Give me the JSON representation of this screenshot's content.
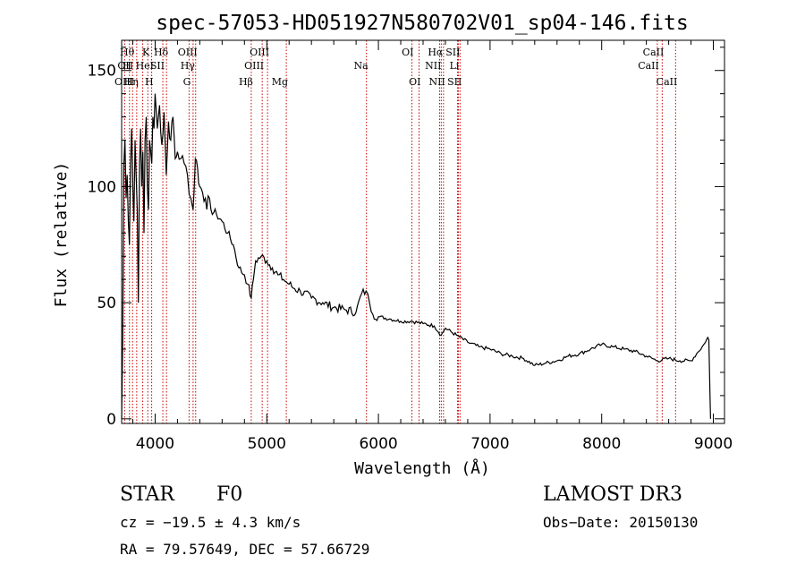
{
  "chart_data": {
    "type": "line",
    "title": "spec-57053-HD051927N580702V01_sp04-146.fits",
    "xlabel": "Wavelength (Å)",
    "ylabel": "Flux (relative)",
    "xlim": [
      3700,
      9100
    ],
    "ylim": [
      -2,
      163
    ],
    "xticks": [
      4000,
      5000,
      6000,
      7000,
      8000,
      9000
    ],
    "yticks": [
      0,
      50,
      100,
      150
    ],
    "grid": false,
    "series": [
      {
        "name": "flux",
        "x": [
          3700,
          3710,
          3720,
          3730,
          3740,
          3750,
          3760,
          3770,
          3780,
          3790,
          3800,
          3810,
          3820,
          3830,
          3840,
          3850,
          3860,
          3870,
          3880,
          3890,
          3900,
          3910,
          3920,
          3930,
          3940,
          3950,
          3960,
          3970,
          3980,
          3990,
          4000,
          4020,
          4040,
          4060,
          4080,
          4100,
          4120,
          4140,
          4160,
          4180,
          4200,
          4230,
          4260,
          4290,
          4320,
          4340,
          4360,
          4380,
          4400,
          4450,
          4500,
          4550,
          4600,
          4650,
          4700,
          4750,
          4800,
          4830,
          4861,
          4880,
          4900,
          4950,
          5000,
          5050,
          5100,
          5150,
          5200,
          5250,
          5300,
          5400,
          5500,
          5600,
          5700,
          5800,
          5850,
          5890,
          5920,
          5950,
          6000,
          6100,
          6200,
          6300,
          6400,
          6500,
          6563,
          6600,
          6700,
          6800,
          6900,
          7000,
          7100,
          7200,
          7300,
          7400,
          7500,
          7600,
          7700,
          7800,
          7900,
          8000,
          8100,
          8200,
          8300,
          8400,
          8500,
          8600,
          8700,
          8800,
          8850,
          8900,
          8930,
          8950,
          8960,
          8970,
          8975
        ],
        "y": [
          0,
          35,
          110,
          120,
          95,
          105,
          85,
          75,
          110,
          125,
          100,
          85,
          120,
          105,
          90,
          50,
          110,
          125,
          100,
          115,
          80,
          120,
          130,
          100,
          90,
          120,
          115,
          110,
          130,
          125,
          140,
          125,
          135,
          118,
          132,
          105,
          128,
          120,
          130,
          112,
          115,
          112,
          110,
          105,
          95,
          90,
          112,
          108,
          100,
          95,
          90,
          88,
          85,
          80,
          75,
          65,
          62,
          58,
          52,
          60,
          68,
          70,
          68,
          65,
          62,
          60,
          58,
          56,
          55,
          52,
          50,
          48,
          47,
          46,
          54,
          55,
          50,
          45,
          44,
          43,
          42,
          42,
          41,
          40,
          36,
          39,
          36,
          33,
          31,
          30,
          28,
          27,
          26,
          23,
          24,
          25,
          27,
          28,
          30,
          32,
          31,
          30,
          29,
          27,
          25,
          26,
          25,
          25,
          28,
          31,
          33,
          35,
          34,
          10,
          0
        ]
      }
    ],
    "line_markers": [
      {
        "label": "Hθ",
        "x": 3798,
        "row": 1,
        "side": "left"
      },
      {
        "label": "OII",
        "x": 3727,
        "row": 2,
        "side": "right"
      },
      {
        "label": "H",
        "x": 3770,
        "row": 2,
        "side": "left"
      },
      {
        "label": "OIII",
        "x": 3700,
        "row": 3,
        "side": "right"
      },
      {
        "label": "Hη",
        "x": 3835,
        "row": 3,
        "side": "left"
      },
      {
        "label": "K",
        "x": 3934,
        "row": 1,
        "side": "left"
      },
      {
        "label": "HeI",
        "x": 3889,
        "row": 2,
        "side": "right"
      },
      {
        "label": "H",
        "x": 3969,
        "row": 3,
        "side": "left"
      },
      {
        "label": "SII",
        "x": 4069,
        "row": 2,
        "side": "left"
      },
      {
        "label": "Hδ",
        "x": 4102,
        "row": 1,
        "side": "left"
      },
      {
        "label": "OIII",
        "x": 4363,
        "row": 1,
        "side": "left"
      },
      {
        "label": "Hγ",
        "x": 4340,
        "row": 2,
        "side": "left"
      },
      {
        "label": "G",
        "x": 4304,
        "row": 3,
        "side": "left"
      },
      {
        "label": "Hβ",
        "x": 4861,
        "row": 3,
        "side": "left"
      },
      {
        "label": "OIII",
        "x": 4959,
        "row": 2,
        "side": "left"
      },
      {
        "label": "OIII",
        "x": 5007,
        "row": 1,
        "side": "left"
      },
      {
        "label": "Mg",
        "x": 5175,
        "row": 3,
        "side": "left"
      },
      {
        "label": "Na",
        "x": 5893,
        "row": 2,
        "side": "left"
      },
      {
        "label": "OI",
        "x": 6300,
        "row": 1,
        "side": "left"
      },
      {
        "label": "OI",
        "x": 6364,
        "row": 3,
        "side": "left"
      },
      {
        "label": "Hα",
        "x": 6563,
        "row": 1,
        "side": "left"
      },
      {
        "label": "NII",
        "x": 6548,
        "row": 2,
        "side": "left"
      },
      {
        "label": "NII",
        "x": 6583,
        "row": 3,
        "side": "left"
      },
      {
        "label": "Li",
        "x": 6708,
        "row": 2,
        "side": "left"
      },
      {
        "label": "SII",
        "x": 6716,
        "row": 1,
        "side": "left"
      },
      {
        "label": "SII",
        "x": 6731,
        "row": 3,
        "side": "left"
      },
      {
        "label": "CaII",
        "x": 8498,
        "row": 2,
        "side": "left"
      },
      {
        "label": "CaII",
        "x": 8542,
        "row": 1,
        "side": "left"
      },
      {
        "label": "CaII",
        "x": 8662,
        "row": 3,
        "side": "left"
      }
    ]
  },
  "info": {
    "class_label": "STAR",
    "subclass": "F0",
    "survey": "LAMOST DR3",
    "cz": "cz = −19.5 ± 4.3 km/s",
    "obs_date": "Obs−Date: 20150130",
    "coords": "RA =  79.57649, DEC =  57.66729"
  },
  "colors": {
    "spectrum": "#000000",
    "marker": "#cc0000",
    "frame": "#000000"
  }
}
